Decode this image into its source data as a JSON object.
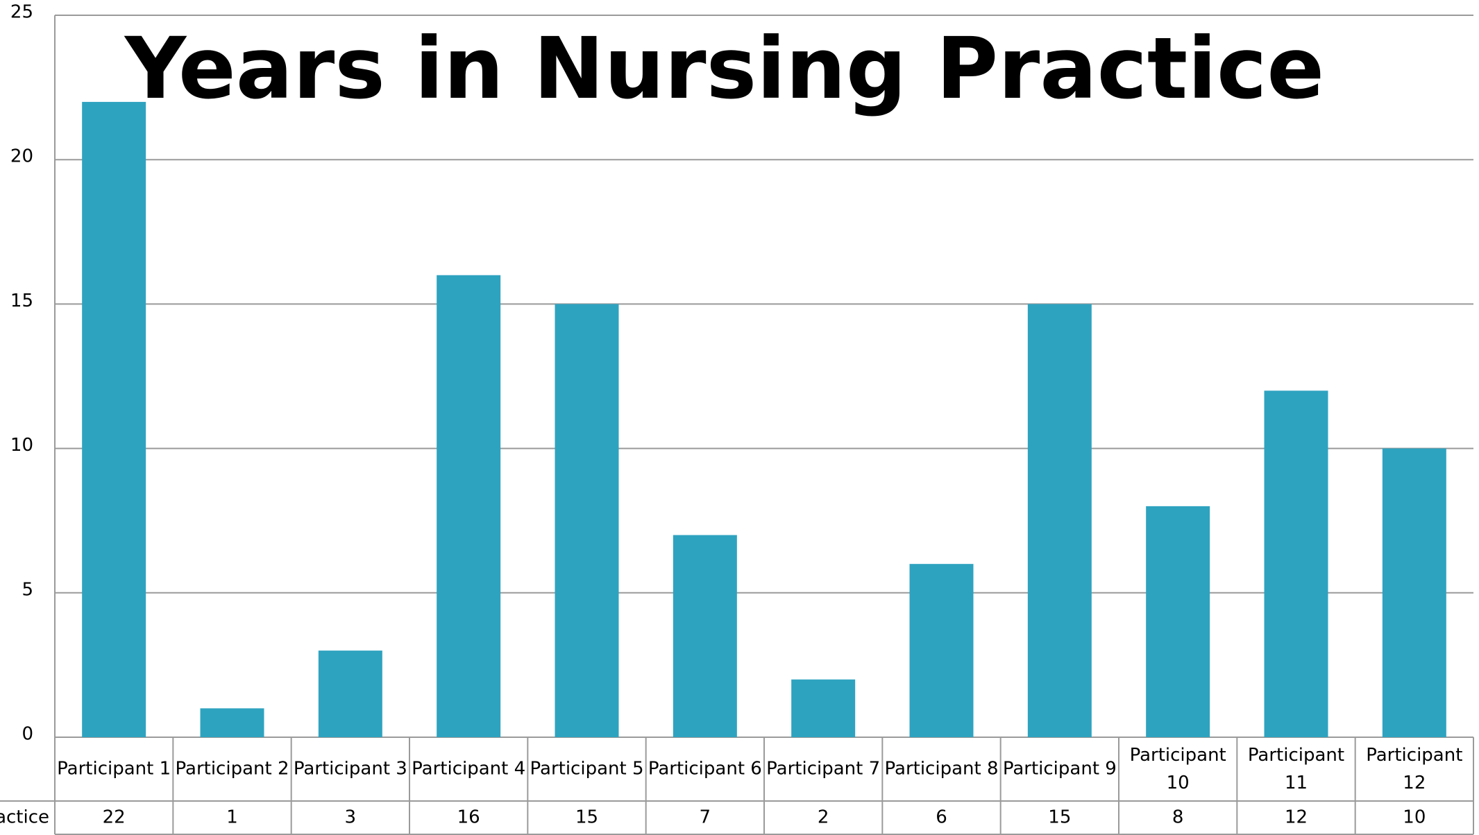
{
  "chart_data": {
    "type": "bar",
    "title": "Years in Nursing Practice",
    "categories": [
      "Participant 1",
      "Participant 2",
      "Participant 3",
      "Participant 4",
      "Participant 5",
      "Participant 6",
      "Participant 7",
      "Participant 8",
      "Participant 9",
      "Participant 10",
      "Participant 11",
      "Participant 12"
    ],
    "series": [
      {
        "name": "actice",
        "color": "#2ea3c0",
        "values": [
          22,
          1,
          3,
          16,
          15,
          7,
          2,
          6,
          15,
          8,
          12,
          10
        ]
      }
    ],
    "ylim": [
      0,
      25
    ],
    "yticks": [
      0,
      5,
      10,
      15,
      20,
      25
    ],
    "grid": true,
    "data_table": true
  }
}
